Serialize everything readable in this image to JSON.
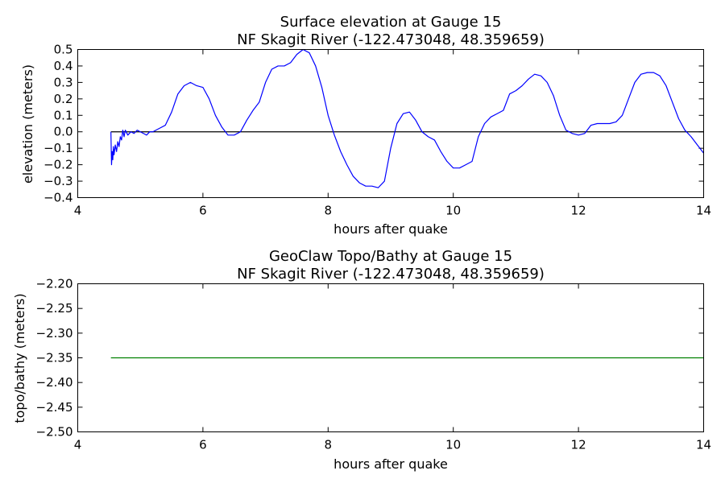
{
  "chart_data": [
    {
      "type": "line",
      "title": "Surface elevation at Gauge 15",
      "subtitle": "NF Skagit River  (-122.473048, 48.359659)",
      "xlabel": "hours after quake",
      "ylabel": "elevation (meters)",
      "xlim": [
        4,
        14
      ],
      "ylim": [
        -0.4,
        0.5
      ],
      "xticks": [
        4,
        6,
        8,
        10,
        12,
        14
      ],
      "yticks": [
        -0.4,
        -0.3,
        -0.2,
        -0.1,
        0.0,
        0.1,
        0.2,
        0.3,
        0.4,
        0.5
      ],
      "xtick_labels": [
        "4",
        "6",
        "8",
        "10",
        "12",
        "14"
      ],
      "ytick_labels": [
        "−0.4",
        "−0.3",
        "−0.2",
        "−0.1",
        "0.0",
        "0.1",
        "0.2",
        "0.3",
        "0.4",
        "0.5"
      ],
      "grid": false,
      "reference_line": {
        "y": 0,
        "x": [
          4.53,
          14
        ],
        "color": "#000000"
      },
      "series": [
        {
          "color": "#0000ff",
          "x": [
            4.53,
            4.54,
            4.55,
            4.56,
            4.57,
            4.58,
            4.6,
            4.62,
            4.64,
            4.66,
            4.68,
            4.7,
            4.72,
            4.74,
            4.76,
            4.8,
            4.85,
            4.9,
            4.95,
            5.0,
            5.05,
            5.1,
            5.15,
            5.2,
            5.3,
            5.4,
            5.5,
            5.6,
            5.7,
            5.8,
            5.9,
            6.0,
            6.1,
            6.2,
            6.3,
            6.4,
            6.5,
            6.6,
            6.7,
            6.8,
            6.9,
            7.0,
            7.1,
            7.2,
            7.3,
            7.4,
            7.5,
            7.6,
            7.7,
            7.8,
            7.9,
            8.0,
            8.1,
            8.2,
            8.3,
            8.4,
            8.5,
            8.6,
            8.7,
            8.8,
            8.9,
            9.0,
            9.1,
            9.2,
            9.3,
            9.4,
            9.5,
            9.6,
            9.7,
            9.8,
            9.9,
            10.0,
            10.1,
            10.2,
            10.3,
            10.4,
            10.5,
            10.6,
            10.7,
            10.8,
            10.9,
            11.0,
            11.1,
            11.2,
            11.3,
            11.4,
            11.5,
            11.6,
            11.7,
            11.8,
            11.9,
            12.0,
            12.1,
            12.2,
            12.3,
            12.4,
            12.5,
            12.6,
            12.7,
            12.8,
            12.9,
            13.0,
            13.1,
            13.2,
            13.3,
            13.4,
            13.5,
            13.6,
            13.7,
            13.8,
            13.9,
            14.0
          ],
          "y": [
            0.0,
            -0.2,
            -0.12,
            -0.17,
            -0.09,
            -0.14,
            -0.08,
            -0.12,
            -0.06,
            -0.09,
            -0.03,
            -0.05,
            0.01,
            -0.03,
            0.01,
            -0.02,
            0.0,
            -0.01,
            0.01,
            0.0,
            -0.01,
            -0.02,
            0.0,
            0.0,
            0.02,
            0.04,
            0.12,
            0.23,
            0.28,
            0.3,
            0.28,
            0.27,
            0.2,
            0.1,
            0.03,
            -0.02,
            -0.02,
            0.0,
            0.07,
            0.13,
            0.18,
            0.3,
            0.38,
            0.4,
            0.4,
            0.42,
            0.47,
            0.5,
            0.48,
            0.4,
            0.27,
            0.1,
            -0.02,
            -0.12,
            -0.2,
            -0.27,
            -0.31,
            -0.33,
            -0.33,
            -0.34,
            -0.3,
            -0.1,
            0.05,
            0.11,
            0.12,
            0.07,
            0.0,
            -0.03,
            -0.05,
            -0.12,
            -0.18,
            -0.22,
            -0.22,
            -0.2,
            -0.18,
            -0.03,
            0.05,
            0.09,
            0.11,
            0.13,
            0.23,
            0.25,
            0.28,
            0.32,
            0.35,
            0.34,
            0.3,
            0.22,
            0.1,
            0.01,
            -0.01,
            -0.02,
            -0.01,
            0.04,
            0.05,
            0.05,
            0.05,
            0.06,
            0.1,
            0.2,
            0.3,
            0.35,
            0.36,
            0.36,
            0.34,
            0.28,
            0.18,
            0.08,
            0.01,
            -0.03,
            -0.08,
            -0.13
          ]
        }
      ]
    },
    {
      "type": "line",
      "title": "GeoClaw Topo/Bathy at Gauge 15",
      "subtitle": "NF Skagit River  (-122.473048, 48.359659)",
      "xlabel": "hours after quake",
      "ylabel": "topo/bathy (meters)",
      "xlim": [
        4,
        14
      ],
      "ylim": [
        -2.5,
        -2.2
      ],
      "xticks": [
        4,
        6,
        8,
        10,
        12,
        14
      ],
      "yticks": [
        -2.5,
        -2.45,
        -2.4,
        -2.35,
        -2.3,
        -2.25,
        -2.2
      ],
      "xtick_labels": [
        "4",
        "6",
        "8",
        "10",
        "12",
        "14"
      ],
      "ytick_labels": [
        "−2.50",
        "−2.45",
        "−2.40",
        "−2.35",
        "−2.30",
        "−2.25",
        "−2.20"
      ],
      "grid": false,
      "series": [
        {
          "color": "#008000",
          "x": [
            4.53,
            14.0
          ],
          "y": [
            -2.35,
            -2.35
          ]
        }
      ]
    }
  ]
}
